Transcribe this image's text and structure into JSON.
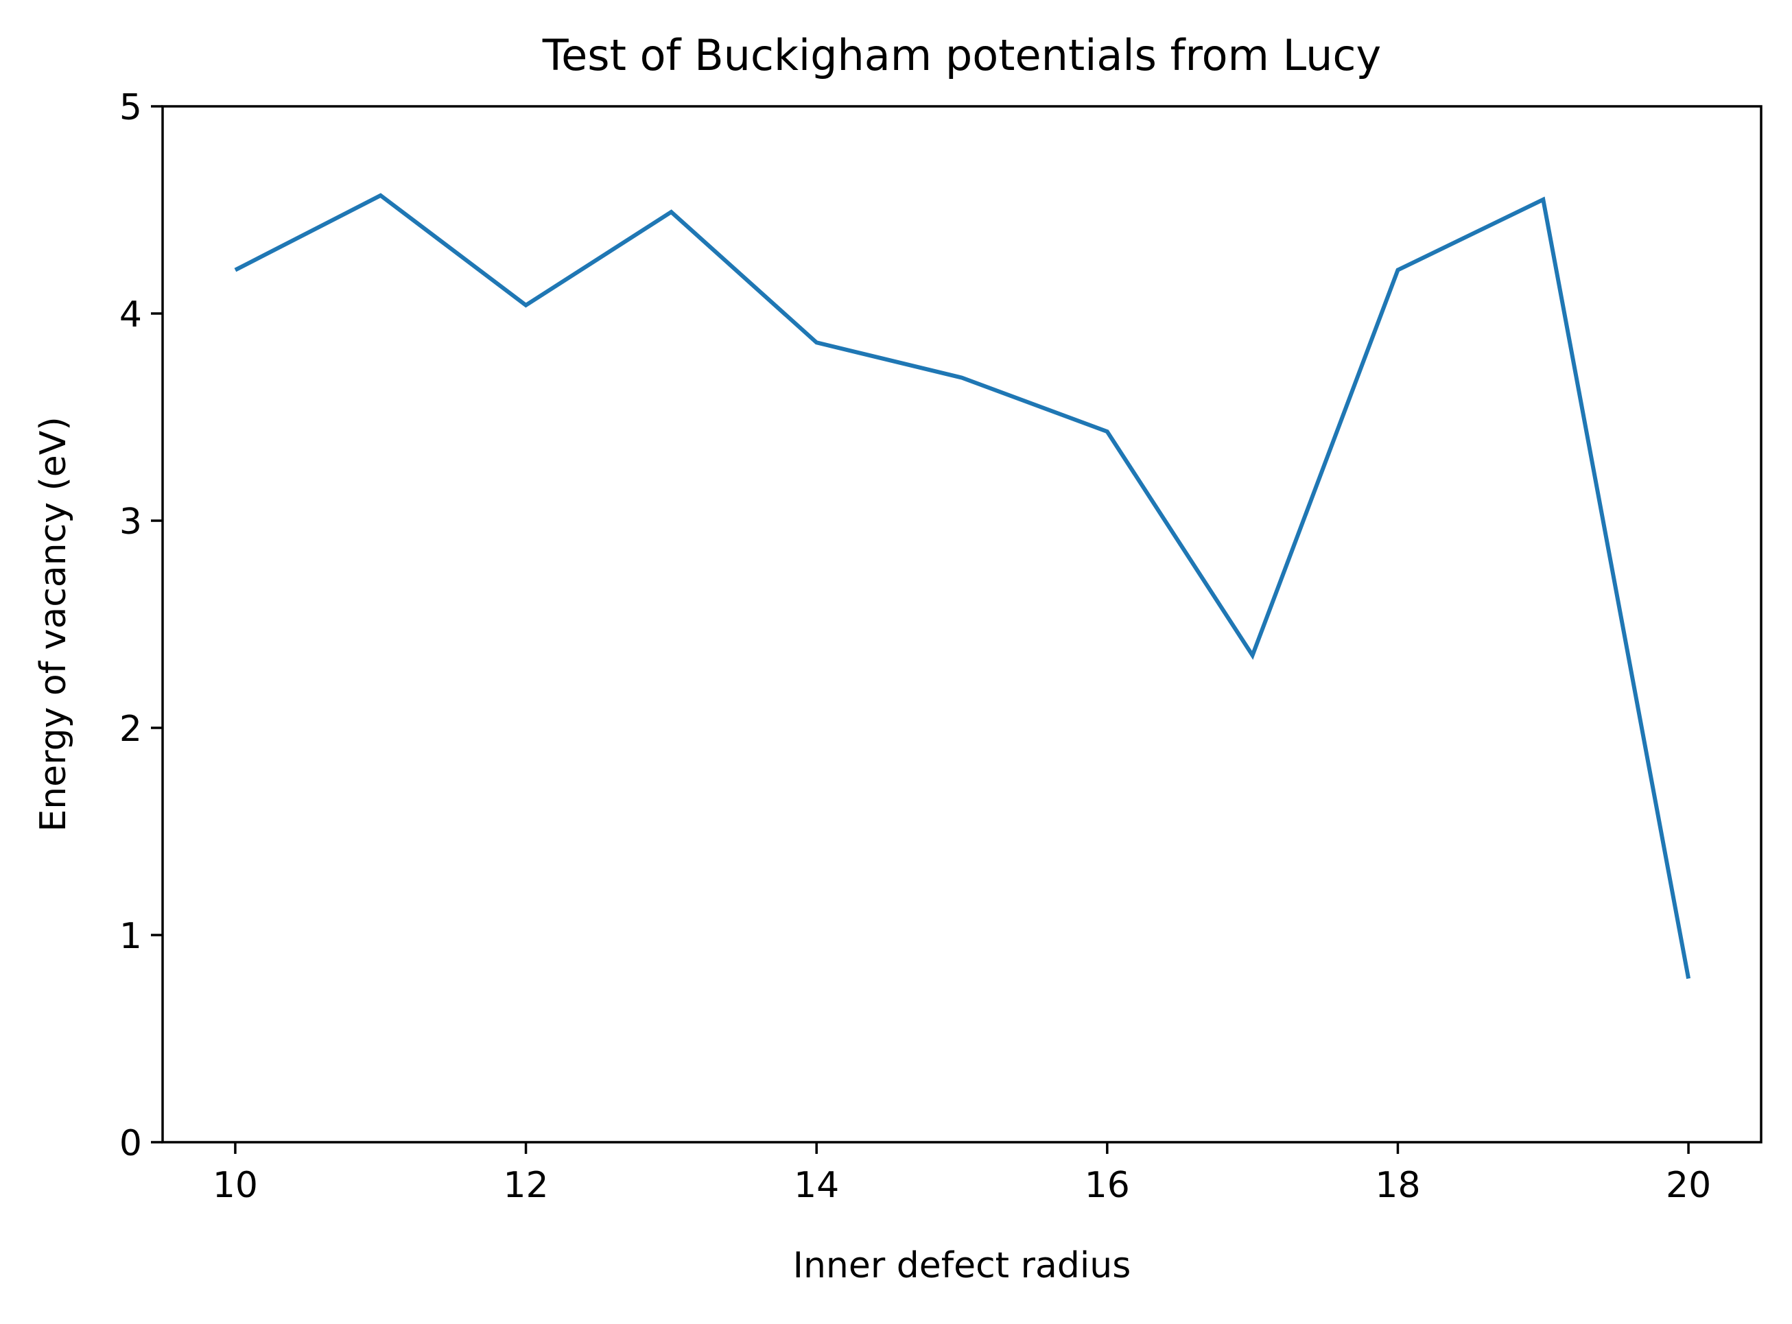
{
  "chart_data": {
    "type": "line",
    "title": "Test of Buckigham potentials from Lucy",
    "xlabel": "Inner defect radius",
    "ylabel": "Energy of vacancy (eV)",
    "xlim": [
      9.5,
      20.5
    ],
    "ylim": [
      0,
      5
    ],
    "xticks": [
      10,
      12,
      14,
      16,
      18,
      20
    ],
    "yticks": [
      0,
      1,
      2,
      3,
      4,
      5
    ],
    "grid": false,
    "legend": "none",
    "series": [
      {
        "color": "#1f77b4",
        "x": [
          10,
          11,
          12,
          13,
          14,
          15,
          16,
          17,
          18,
          19,
          20
        ],
        "y": [
          4.21,
          4.57,
          4.04,
          4.49,
          3.86,
          3.69,
          3.43,
          2.35,
          4.21,
          4.55,
          0.79
        ]
      }
    ]
  }
}
